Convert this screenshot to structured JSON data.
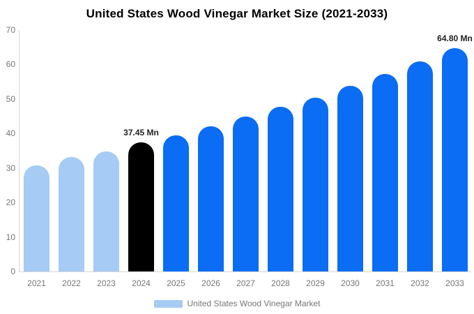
{
  "title": "United States Wood Vinegar Market Size (2021-2033)",
  "legend": {
    "label": "United States Wood Vinegar Market",
    "swatch_color": "#a6cbf4"
  },
  "colors": {
    "historical_bar": "#a6cbf4",
    "base_year_bar": "#000000",
    "forecast_bar": "#0b6cf4",
    "axis_line": "#d6d6d6",
    "tick_text": "#767676",
    "value_label_text": "#222222",
    "title_text": "#000000"
  },
  "chart_data": {
    "type": "bar",
    "title": "United States Wood Vinegar Market Size (2021-2033)",
    "categories": [
      "2021",
      "2022",
      "2023",
      "2024",
      "2025",
      "2026",
      "2027",
      "2028",
      "2029",
      "2030",
      "2031",
      "2032",
      "2033"
    ],
    "values": [
      30.8,
      33.2,
      34.8,
      37.45,
      39.4,
      42.1,
      44.9,
      47.7,
      50.4,
      53.8,
      57.2,
      60.9,
      64.8
    ],
    "unit": "Mn",
    "bar_colors": [
      "#a6cbf4",
      "#a6cbf4",
      "#a6cbf4",
      "#000000",
      "#0b6cf4",
      "#0b6cf4",
      "#0b6cf4",
      "#0b6cf4",
      "#0b6cf4",
      "#0b6cf4",
      "#0b6cf4",
      "#0b6cf4",
      "#0b6cf4"
    ],
    "annotations": [
      {
        "index": 3,
        "text": "37.45 Mn"
      },
      {
        "index": 12,
        "text": "64.80 Mn"
      }
    ],
    "xlabel": "",
    "ylabel": "",
    "ylim": [
      0,
      70
    ],
    "yticks": [
      0,
      10,
      20,
      30,
      40,
      50,
      60,
      70
    ],
    "grid": false,
    "legend_entries": [
      "United States Wood Vinegar Market"
    ],
    "legend_position": "bottom"
  }
}
